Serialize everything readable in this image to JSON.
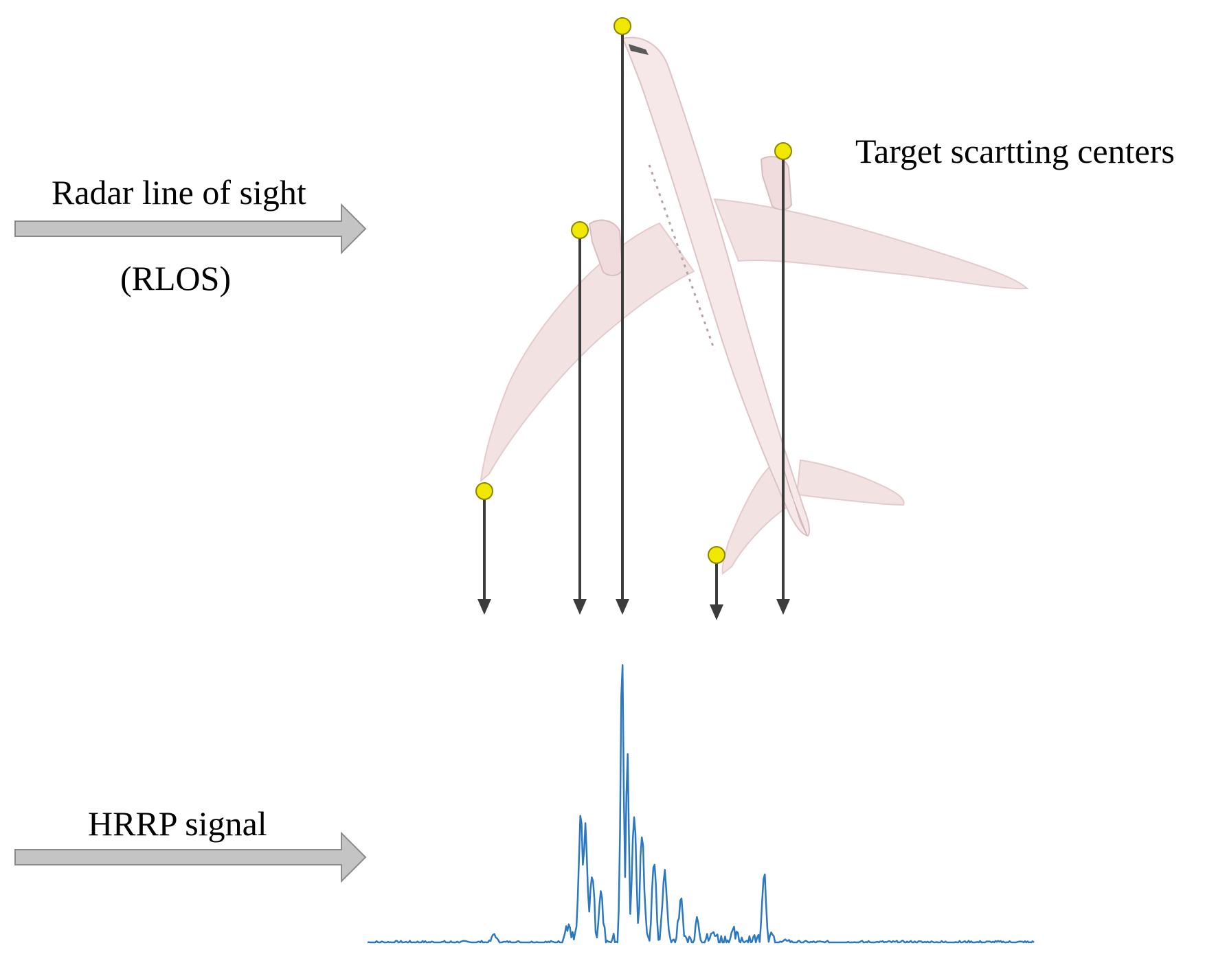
{
  "labels": {
    "rlos_title": "Radar line of sight",
    "rlos_abbr": "(RLOS)",
    "scattering": "Target scartting centers",
    "hrrp": "HRRP signal"
  },
  "colors": {
    "background": "#ffffff",
    "text": "#000000",
    "arrow_fill": "#c4c4c4",
    "arrow_stroke": "#8a8a8a",
    "projection_line": "#3c3c3c",
    "scatter_dot": "#f0e800",
    "scatter_dot_border": "#8a8400",
    "aircraft_body": "#f3e2e2",
    "aircraft_shade": "#dcc4c6",
    "signal": "#2b78c0"
  },
  "icons": {
    "rlos_arrow": "right-arrow-icon",
    "hrrp_arrow": "right-arrow-icon",
    "aircraft": "airplane-icon",
    "scatter_point": "circle-dot-icon"
  },
  "scattering_centers": [
    {
      "name": "left-wingtip"
    },
    {
      "name": "left-engine"
    },
    {
      "name": "nose"
    },
    {
      "name": "tail-stabilizer"
    },
    {
      "name": "right-engine"
    }
  ],
  "hrrp_signal": {
    "series": "HRRP amplitude",
    "peaks": [
      {
        "position": 0.19,
        "amplitude": 0.03
      },
      {
        "position": 0.3,
        "amplitude": 0.05
      },
      {
        "position": 0.32,
        "amplitude": 0.43
      },
      {
        "position": 0.327,
        "amplitude": 0.39
      },
      {
        "position": 0.337,
        "amplitude": 0.24
      },
      {
        "position": 0.35,
        "amplitude": 0.16
      },
      {
        "position": 0.382,
        "amplitude": 1.0
      },
      {
        "position": 0.39,
        "amplitude": 0.64
      },
      {
        "position": 0.4,
        "amplitude": 0.44
      },
      {
        "position": 0.412,
        "amplitude": 0.37
      },
      {
        "position": 0.43,
        "amplitude": 0.27
      },
      {
        "position": 0.446,
        "amplitude": 0.25
      },
      {
        "position": 0.47,
        "amplitude": 0.13
      },
      {
        "position": 0.495,
        "amplitude": 0.08
      },
      {
        "position": 0.52,
        "amplitude": 0.03
      },
      {
        "position": 0.55,
        "amplitude": 0.02
      },
      {
        "position": 0.595,
        "amplitude": 0.24
      },
      {
        "position": 0.63,
        "amplitude": 0.01
      }
    ]
  }
}
